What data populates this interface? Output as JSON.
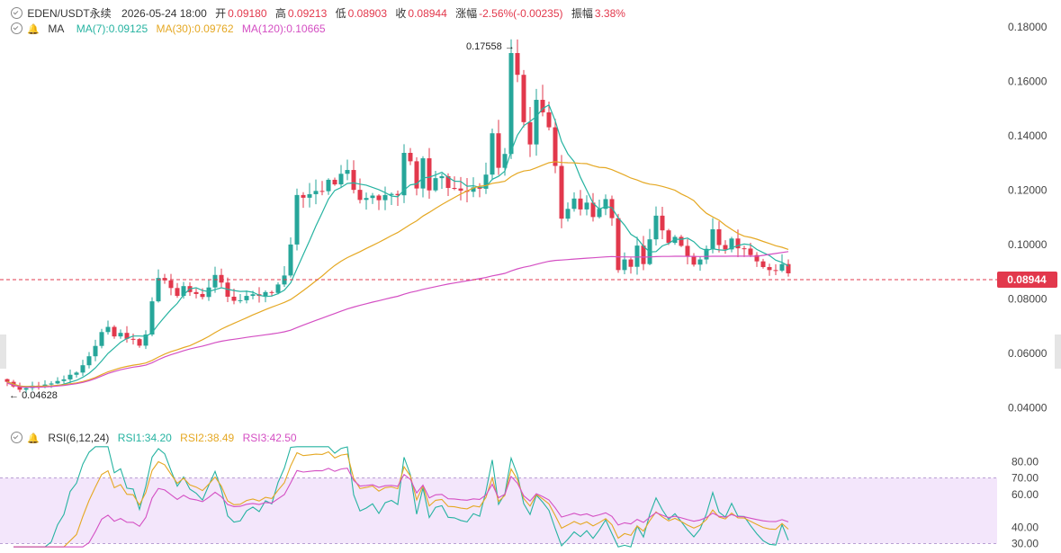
{
  "header": {
    "symbol": "EDEN/USDT永续",
    "datetime": "2026-05-24 18:00",
    "open_label": "开",
    "open": "0.09180",
    "high_label": "高",
    "high": "0.09213",
    "low_label": "低",
    "low": "0.08903",
    "close_label": "收",
    "close": "0.08944",
    "change_label": "涨幅",
    "change": "-2.56%(-0.00235)",
    "amp_label": "振幅",
    "amp": "3.38%"
  },
  "ma_legend": {
    "name": "MA",
    "ma7": "MA(7):0.09125",
    "ma30": "MA(30):0.09762",
    "ma120": "MA(120):0.10665"
  },
  "rsi_legend": {
    "name": "RSI(6,12,24)",
    "rsi1": "RSI1:34.20",
    "rsi2": "RSI2:38.49",
    "rsi3": "RSI3:42.50"
  },
  "colors": {
    "up": "#26a69a",
    "down": "#e2384c",
    "ma7": "#26b3a1",
    "ma30": "#e5a823",
    "ma120": "#d44fc3",
    "rsi_band": "#f3e6fb"
  },
  "chart_data": [
    {
      "type": "candlestick",
      "price_ticks": [
        "0.18000",
        "0.16000",
        "0.14000",
        "0.12000",
        "0.10000",
        "0.08000",
        "0.06000",
        "0.04000"
      ],
      "ylim": [
        0.0345,
        0.1833
      ],
      "current_price": "0.08944",
      "max_label": "0.17558",
      "min_label": "0.04628",
      "closes": [
        0.0495,
        0.0478,
        0.0466,
        0.0472,
        0.0481,
        0.0477,
        0.0485,
        0.0489,
        0.0498,
        0.0504,
        0.0521,
        0.0529,
        0.0556,
        0.0589,
        0.0627,
        0.0678,
        0.0697,
        0.0662,
        0.0675,
        0.0653,
        0.0652,
        0.0628,
        0.0669,
        0.0791,
        0.0877,
        0.0868,
        0.084,
        0.0811,
        0.0847,
        0.0825,
        0.0818,
        0.0807,
        0.0842,
        0.0888,
        0.086,
        0.0808,
        0.0793,
        0.0795,
        0.0811,
        0.0817,
        0.0811,
        0.0825,
        0.0822,
        0.0853,
        0.0886,
        0.1,
        0.1182,
        0.1172,
        0.1185,
        0.1197,
        0.1196,
        0.1238,
        0.1221,
        0.126,
        0.1274,
        0.1201,
        0.1164,
        0.1171,
        0.118,
        0.1163,
        0.1182,
        0.1186,
        0.1181,
        0.1337,
        0.1306,
        0.1206,
        0.1317,
        0.1199,
        0.1244,
        0.1251,
        0.1208,
        0.1206,
        0.1198,
        0.1194,
        0.121,
        0.1205,
        0.1257,
        0.1409,
        0.1282,
        0.1333,
        0.1704,
        0.1624,
        0.145,
        0.1368,
        0.1532,
        0.1486,
        0.1431,
        0.1289,
        0.1095,
        0.1131,
        0.1169,
        0.1129,
        0.1154,
        0.1101,
        0.1131,
        0.1167,
        0.1097,
        0.0906,
        0.0945,
        0.0918,
        0.0996,
        0.0928,
        0.1019,
        0.1106,
        0.1052,
        0.1006,
        0.1028,
        0.0995,
        0.0958,
        0.0926,
        0.0945,
        0.0984,
        0.1056,
        0.0998,
        0.0982,
        0.1022,
        0.0986,
        0.0985,
        0.0961,
        0.0938,
        0.0917,
        0.0906,
        0.0904,
        0.0928,
        0.0894
      ],
      "ma": [
        {
          "name": "MA(7)",
          "period": 7
        },
        {
          "name": "MA(30)",
          "period": 30
        },
        {
          "name": "MA(120)",
          "period": 120
        }
      ]
    },
    {
      "type": "line",
      "y_ticks": [
        "80.00",
        "70.00",
        "60.00",
        "40.00",
        "30.00"
      ],
      "ylim": [
        27,
        90
      ],
      "band": [
        30,
        70
      ],
      "series": [
        {
          "name": "RSI1",
          "period": 6
        },
        {
          "name": "RSI2",
          "period": 12
        },
        {
          "name": "RSI3",
          "period": 24
        }
      ]
    }
  ]
}
